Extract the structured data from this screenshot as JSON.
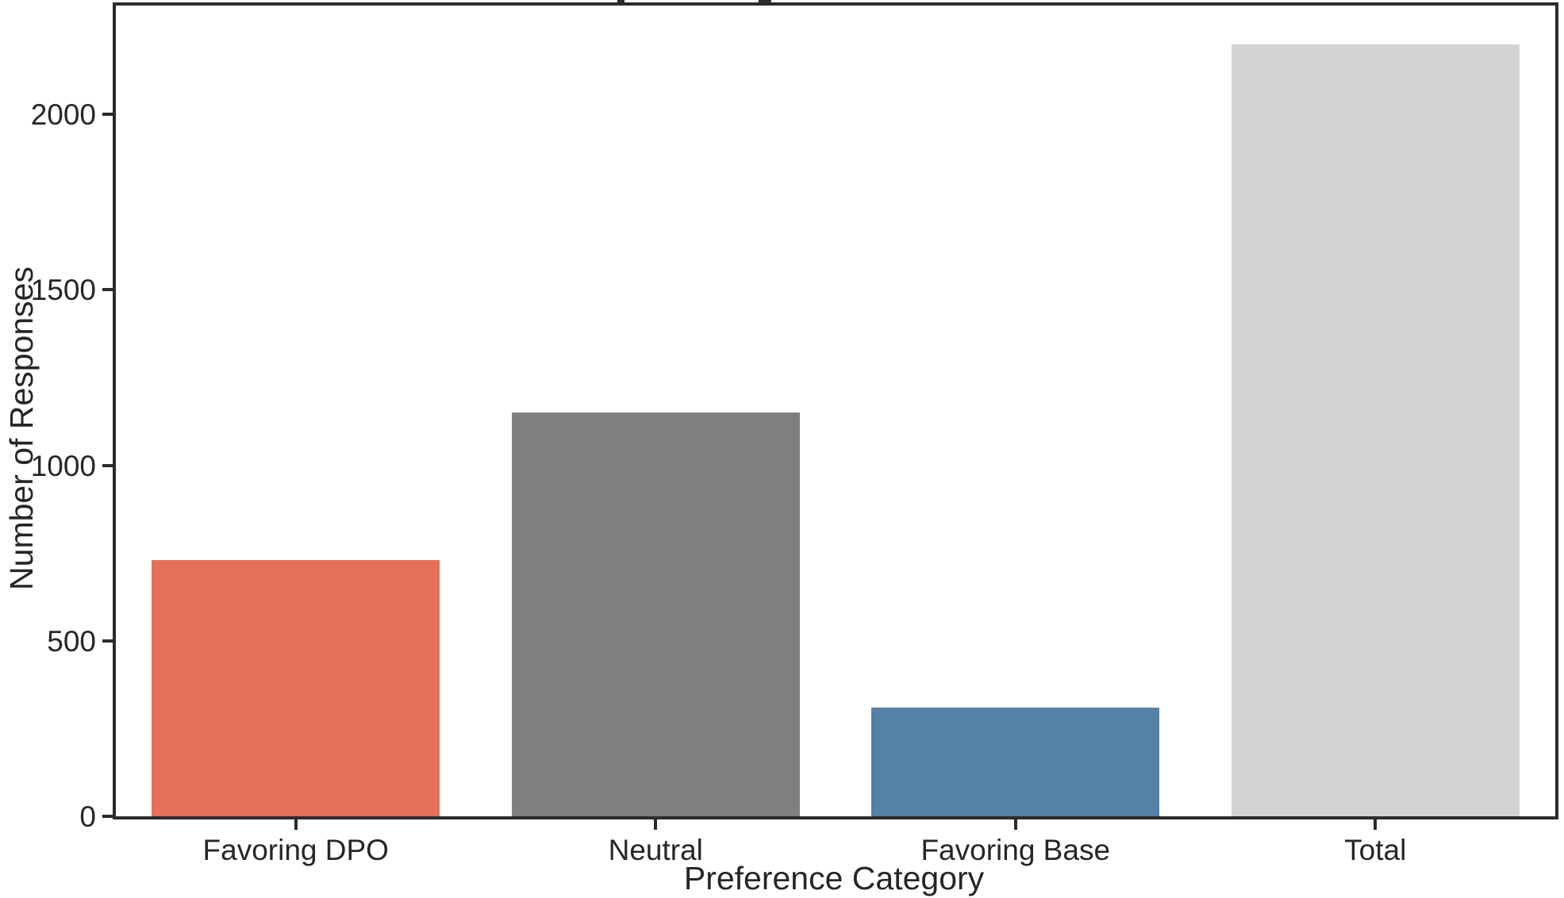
{
  "chart_data": {
    "type": "bar",
    "title_clipped": true,
    "categories": [
      "Favoring DPO",
      "Neutral",
      "Favoring Base",
      "Total"
    ],
    "values": [
      730,
      1150,
      310,
      2200
    ],
    "bar_colors": [
      "#e4705a",
      "#7f7f7f",
      "#5282a8",
      "#d3d3d3"
    ],
    "xlabel": "Preference Category",
    "ylabel": "Number of Responses",
    "yticks": [
      0,
      500,
      1000,
      1500,
      2000
    ],
    "ylim": [
      0,
      2310
    ],
    "bar_width_fraction": 0.8,
    "grid": false,
    "legend": null
  },
  "colors": {
    "background": "#ffffff",
    "spine": "#2b2b2b",
    "text": "#262626"
  }
}
